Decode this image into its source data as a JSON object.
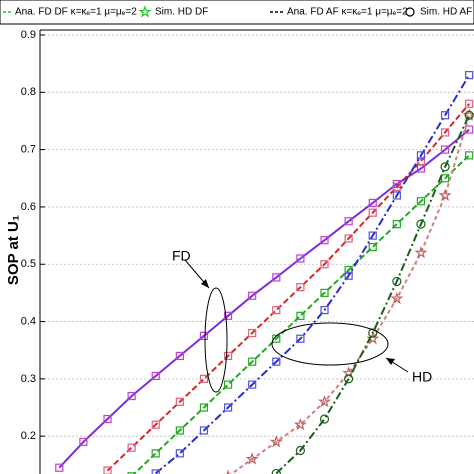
{
  "chart_data": {
    "type": "line",
    "y_label": "SOP at U₁",
    "ylim": [
      0.134,
      0.9
    ],
    "yticks": [
      0.2,
      0.3,
      0.4,
      0.5,
      0.6,
      0.7,
      0.8,
      0.9
    ],
    "xlim": [
      -0.8,
      17.2
    ],
    "grid": true,
    "annotations": [
      {
        "text": "FD"
      },
      {
        "text": "HD"
      }
    ],
    "legend": [
      {
        "label": "Ana. FD DF κ=κₑ=1 μ=μₑ=2",
        "color": "#22cc22",
        "marker": "line"
      },
      {
        "label": "Sim. HD DF",
        "color": "#22cc22",
        "marker": "star"
      },
      {
        "label": "Ana. FD AF κ=κₑ=1 μ=μₑ=2",
        "color": "#000000",
        "marker": "line"
      },
      {
        "label": "Sim. HD AF",
        "color": "#000000",
        "marker": "circle"
      }
    ],
    "series": [
      {
        "color": "#7b2fd6",
        "dash": "none",
        "marker": "square",
        "marker_color": "#c03fd0",
        "x": [
          0,
          1,
          2,
          3,
          4,
          5,
          6,
          7,
          8,
          9,
          10,
          11,
          12,
          13,
          14,
          15,
          16,
          17
        ],
        "values": [
          0.145,
          0.19,
          0.23,
          0.27,
          0.305,
          0.34,
          0.375,
          0.41,
          0.445,
          0.477,
          0.51,
          0.542,
          0.575,
          0.607,
          0.64,
          0.667,
          0.7,
          0.735
        ]
      },
      {
        "color": "#d62728",
        "dash": "6 3",
        "marker": "square",
        "marker_color": "#e06080",
        "x": [
          2,
          3,
          4,
          5,
          6,
          7,
          8,
          9,
          10,
          11,
          12,
          13,
          14,
          15,
          16,
          17
        ],
        "values": [
          0.14,
          0.18,
          0.22,
          0.26,
          0.3,
          0.34,
          0.38,
          0.42,
          0.46,
          0.5,
          0.545,
          0.59,
          0.635,
          0.68,
          0.73,
          0.78
        ]
      },
      {
        "color": "#22aa22",
        "dash": "6 3",
        "marker": "square",
        "marker_color": "#22aa22",
        "x": [
          3,
          4,
          5,
          6,
          7,
          8,
          9,
          10,
          11,
          12,
          13,
          14,
          15,
          16,
          17
        ],
        "values": [
          0.13,
          0.17,
          0.21,
          0.25,
          0.29,
          0.33,
          0.37,
          0.41,
          0.45,
          0.49,
          0.53,
          0.57,
          0.61,
          0.65,
          0.69
        ]
      },
      {
        "color": "#2a2ad0",
        "dash": "8 3 2 3",
        "marker": "square",
        "marker_color": "#5050e0",
        "x": [
          4,
          5,
          6,
          7,
          8,
          9,
          10,
          11,
          12,
          13,
          14,
          15,
          16,
          17
        ],
        "values": [
          0.135,
          0.17,
          0.21,
          0.25,
          0.29,
          0.33,
          0.37,
          0.42,
          0.48,
          0.55,
          0.62,
          0.69,
          0.76,
          0.83
        ]
      },
      {
        "color": "#d08080",
        "dash": "4 3",
        "marker": "star",
        "marker_color": "#c06060",
        "x": [
          7,
          8,
          9,
          10,
          11,
          12,
          13,
          14,
          15,
          16,
          17
        ],
        "values": [
          0.13,
          0.16,
          0.19,
          0.22,
          0.26,
          0.31,
          0.37,
          0.44,
          0.52,
          0.62,
          0.76
        ]
      },
      {
        "color": "#1a5e1a",
        "dash": "8 3 2 3",
        "marker": "circle",
        "marker_color": "#1a5e1a",
        "x": [
          9,
          10,
          11,
          12,
          13,
          14,
          15,
          16,
          17
        ],
        "values": [
          0.135,
          0.175,
          0.23,
          0.3,
          0.38,
          0.47,
          0.57,
          0.67,
          0.76
        ]
      }
    ]
  }
}
